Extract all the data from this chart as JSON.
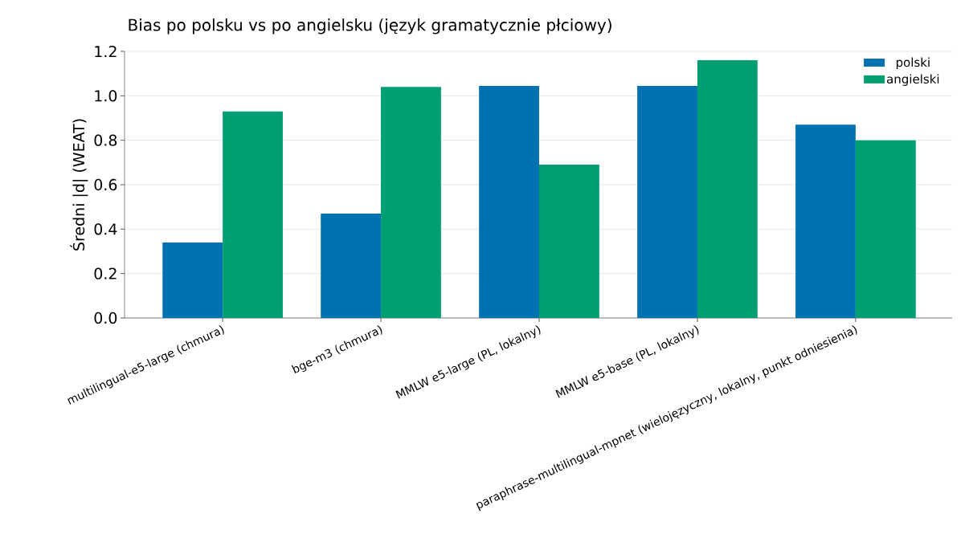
{
  "chart_data": {
    "type": "bar",
    "title": "Bias po polsku vs po angielsku (język gramatycznie płciowy)",
    "ylabel": "Średni |d| (WEAT)",
    "categories": [
      "multilingual-e5-large (chmura)",
      "bge-m3 (chmura)",
      "MMLW e5-large (PL, lokalny)",
      "MMLW e5-base (PL, lokalny)",
      "paraphrase-multilingual-mpnet (wielojęzyczny, lokalny, punkt odniesienia)"
    ],
    "series": [
      {
        "name": "polski",
        "color": "#0072b2",
        "values": [
          0.34,
          0.47,
          1.045,
          1.045,
          0.87
        ]
      },
      {
        "name": "angielski",
        "color": "#009e73",
        "values": [
          0.93,
          1.04,
          0.69,
          1.16,
          0.8
        ]
      }
    ],
    "ylim": [
      0,
      1.2
    ],
    "yticks": [
      {
        "value": 0,
        "label": "0.0"
      },
      0.2,
      0.4,
      0.6,
      0.8,
      {
        "value": 1,
        "label": "1.0"
      },
      1.2
    ],
    "grid": "y",
    "legend": "top right"
  }
}
